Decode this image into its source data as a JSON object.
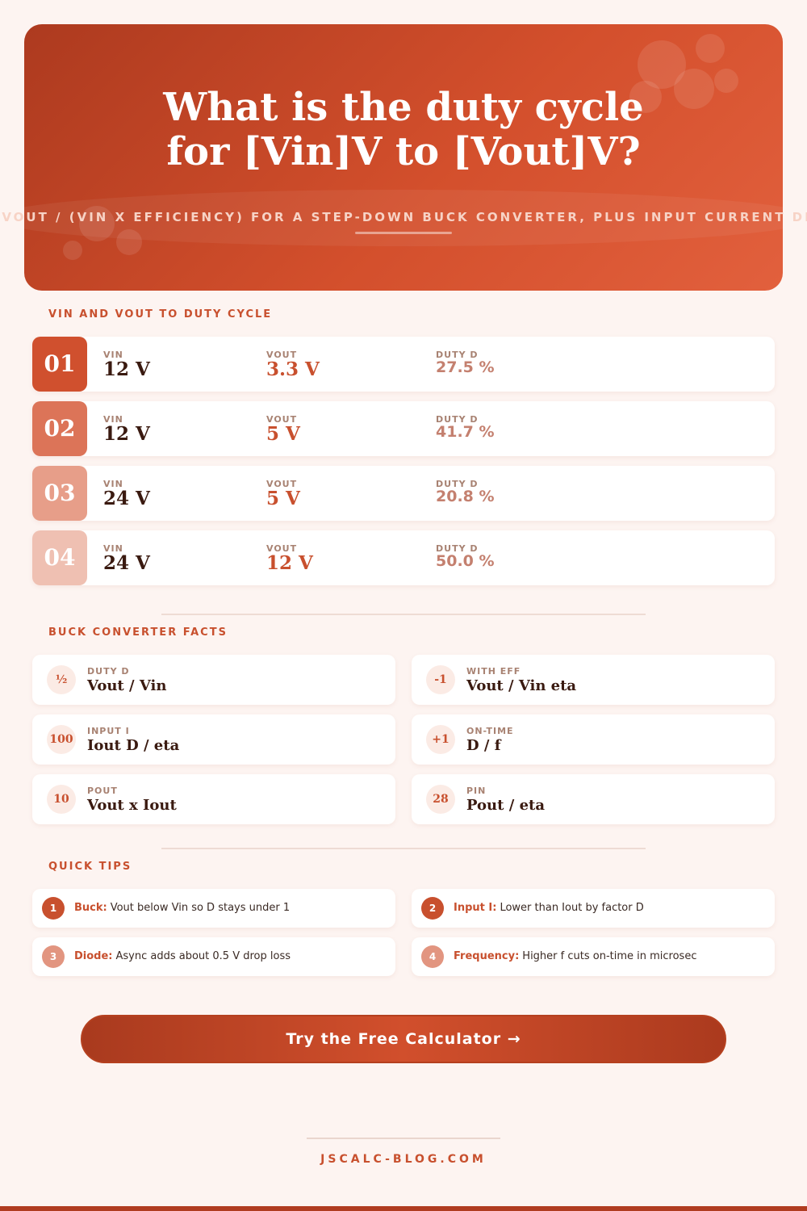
{
  "header": {
    "title_lines": [
      "What is the duty cycle",
      "for [Vin]V to [Vout]V?"
    ],
    "subtitle": "D = VOUT / (VIN X EFFICIENCY) FOR A STEP-DOWN BUCK CONVERTER, PLUS INPUT CURRENT DRAW"
  },
  "examples": {
    "title": "VIN AND VOUT TO DUTY CYCLE",
    "columns": [
      "VIN",
      "VOUT",
      "DUTY D"
    ],
    "rows": [
      {
        "number": "01",
        "vin": "12 V",
        "vout": "3.3 V",
        "duty": "27.5 %"
      },
      {
        "number": "02",
        "vin": "12 V",
        "vout": "5 V",
        "duty": "41.7 %"
      },
      {
        "number": "03",
        "vin": "24 V",
        "vout": "5 V",
        "duty": "20.8 %"
      },
      {
        "number": "04",
        "vin": "24 V",
        "vout": "12 V",
        "duty": "50.0 %"
      }
    ]
  },
  "facts": {
    "title": "BUCK CONVERTER FACTS",
    "items": [
      {
        "icon": "½",
        "label": "DUTY D",
        "value": "Vout / Vin"
      },
      {
        "icon": "-1",
        "label": "WITH EFF",
        "value": "Vout / Vin eta"
      },
      {
        "icon": "100",
        "label": "INPUT I",
        "value": "Iout D / eta"
      },
      {
        "icon": "+1",
        "label": "ON-TIME",
        "value": "D / f"
      },
      {
        "icon": "10",
        "label": "POUT",
        "value": "Vout x Iout"
      },
      {
        "icon": "28",
        "label": "PIN",
        "value": "Pout / eta"
      }
    ]
  },
  "tips": {
    "title": "QUICK TIPS",
    "items": [
      {
        "number": "1",
        "label": "Buck:",
        "text": "Vout below Vin so D stays under 1"
      },
      {
        "number": "2",
        "label": "Input I:",
        "text": "Lower than Iout by factor D"
      },
      {
        "number": "3",
        "label": "Diode:",
        "text": "Async adds about 0.5 V drop loss"
      },
      {
        "number": "4",
        "label": "Frequency:",
        "text": "Higher f cuts on-time in microsec"
      }
    ]
  },
  "cta": {
    "label": "Try the Free Calculator →"
  },
  "footer": {
    "site": "JSCALC-BLOG.COM"
  }
}
